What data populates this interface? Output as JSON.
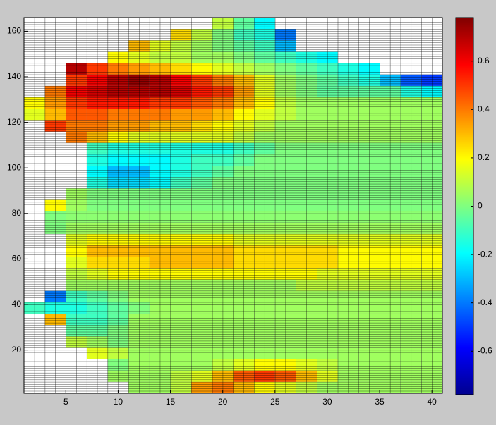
{
  "chart_data": {
    "type": "heatmap",
    "xlim": [
      1,
      41
    ],
    "ylim": [
      1,
      166
    ],
    "xticks": [
      5,
      10,
      15,
      20,
      25,
      30,
      35,
      40
    ],
    "yticks": [
      20,
      40,
      60,
      80,
      100,
      120,
      140,
      160
    ],
    "xbins": [
      1,
      3,
      5,
      7,
      9,
      11,
      13,
      15,
      17,
      19,
      21,
      23,
      25,
      27,
      29,
      31,
      33,
      35,
      37,
      39,
      41
    ],
    "ybins": [
      1,
      6,
      11,
      16,
      21,
      26,
      31,
      36,
      41,
      46,
      51,
      56,
      61,
      66,
      71,
      76,
      81,
      86,
      91,
      96,
      101,
      106,
      111,
      116,
      121,
      126,
      131,
      136,
      141,
      146,
      151,
      156,
      161,
      166
    ],
    "clim": [
      -0.78,
      0.78
    ],
    "cticks": [
      -0.6,
      -0.4,
      -0.2,
      0,
      0.2,
      0.4,
      0.6
    ],
    "colormap": "jet",
    "values": [
      [
        null,
        null,
        null,
        null,
        null,
        0.05,
        0.05,
        0.1,
        0.35,
        0.4,
        0.3,
        0.2,
        0.15,
        0.1,
        0.05,
        0.05,
        0.05,
        0.05,
        0.05,
        0.05
      ],
      [
        null,
        null,
        null,
        null,
        0.05,
        0.05,
        0.05,
        0.1,
        0.15,
        0.3,
        0.45,
        0.5,
        0.45,
        0.3,
        0.15,
        0.05,
        0.05,
        0.05,
        0.05,
        0.05
      ],
      [
        null,
        null,
        null,
        null,
        0,
        0.05,
        0.05,
        0.05,
        0.05,
        0.1,
        0.15,
        0.2,
        0.2,
        0.15,
        0.1,
        0.05,
        0.05,
        0.05,
        0.05,
        0.05
      ],
      [
        null,
        null,
        null,
        0.15,
        0.1,
        0.05,
        0.05,
        0.05,
        0.05,
        0.05,
        0.05,
        0.05,
        0.05,
        0.05,
        0.05,
        0.05,
        0.05,
        0.05,
        0.05,
        0.05
      ],
      [
        null,
        null,
        0.1,
        0.05,
        0,
        0.05,
        0.05,
        0.05,
        0.05,
        0.05,
        0.05,
        0.05,
        0.05,
        0.05,
        0.05,
        0.05,
        0.05,
        0.05,
        0.05,
        0.05
      ],
      [
        null,
        null,
        -0.05,
        -0.05,
        0,
        0.05,
        0.05,
        0.05,
        0.05,
        0.05,
        0.05,
        0.05,
        0.05,
        0.05,
        0.05,
        0.05,
        0.05,
        0.05,
        0.05,
        0.05
      ],
      [
        null,
        0.3,
        -0.1,
        -0.1,
        -0.05,
        0.05,
        0.05,
        0.05,
        0.05,
        0.05,
        0.05,
        0.05,
        0.05,
        0.05,
        0.05,
        0.05,
        0.05,
        0.05,
        0.05,
        0.05
      ],
      [
        -0.1,
        -0.15,
        -0.15,
        -0.1,
        -0.05,
        0,
        0.05,
        0.05,
        0.05,
        0.05,
        0.05,
        0.05,
        0.05,
        0.05,
        0.05,
        0.05,
        0.05,
        0.05,
        0.05,
        0.05
      ],
      [
        null,
        -0.4,
        -0.1,
        -0.05,
        0,
        0.05,
        0.05,
        0.05,
        0.05,
        0.05,
        0.05,
        0.05,
        0.05,
        0.05,
        0.05,
        0.05,
        0.05,
        0.05,
        0.05,
        0.05
      ],
      [
        null,
        null,
        0.05,
        0.05,
        0.05,
        0.05,
        0.05,
        0.05,
        0.05,
        0.05,
        0.05,
        0.05,
        0.05,
        0.1,
        0.1,
        0.1,
        0.1,
        0.1,
        0.1,
        0.1
      ],
      [
        null,
        null,
        0.1,
        0.15,
        0.2,
        0.2,
        0.2,
        0.2,
        0.2,
        0.2,
        0.2,
        0.2,
        0.2,
        0.2,
        0.15,
        0.15,
        0.15,
        0.15,
        0.15,
        0.15
      ],
      [
        null,
        null,
        0.15,
        0.25,
        0.25,
        0.25,
        0.3,
        0.3,
        0.3,
        0.3,
        0.25,
        0.25,
        0.25,
        0.25,
        0.25,
        0.2,
        0.2,
        0.2,
        0.2,
        0.2
      ],
      [
        null,
        null,
        0.2,
        0.3,
        0.3,
        0.3,
        0.3,
        0.3,
        0.3,
        0.3,
        0.25,
        0.25,
        0.25,
        0.25,
        0.25,
        0.2,
        0.2,
        0.2,
        0.2,
        0.2
      ],
      [
        null,
        null,
        0.15,
        0.2,
        0.2,
        0.2,
        0.2,
        0.2,
        0.2,
        0.2,
        0.15,
        0.15,
        0.15,
        0.15,
        0.15,
        0.15,
        0.15,
        0.15,
        0.15,
        0.15
      ],
      [
        null,
        0,
        0.05,
        0.05,
        0.05,
        0.05,
        0.05,
        0.05,
        0.05,
        0.05,
        0.05,
        0.05,
        0.05,
        0.05,
        0.05,
        0.05,
        0.05,
        0.05,
        0.05,
        0.05
      ],
      [
        null,
        0,
        0.02,
        0.02,
        0.02,
        0.02,
        0.02,
        0.02,
        0.02,
        0.02,
        0.02,
        0.02,
        0.02,
        0.02,
        0.02,
        0.02,
        0.02,
        0.02,
        0.02,
        0.02
      ],
      [
        null,
        0.2,
        0.05,
        0,
        0,
        0,
        0,
        0,
        0,
        0,
        0,
        0,
        0,
        0,
        0,
        0,
        0,
        0,
        0,
        0
      ],
      [
        null,
        null,
        0.05,
        0,
        0,
        0,
        0,
        0,
        0,
        0,
        0,
        0,
        0,
        0,
        0,
        0,
        0,
        0,
        0,
        0
      ],
      [
        null,
        null,
        null,
        -0.15,
        -0.25,
        -0.25,
        -0.2,
        -0.1,
        -0.05,
        0,
        0,
        0,
        0,
        0,
        0,
        0,
        0,
        0,
        0,
        0
      ],
      [
        null,
        null,
        null,
        -0.2,
        -0.3,
        -0.3,
        -0.2,
        -0.15,
        -0.1,
        -0.05,
        0,
        0,
        0,
        0,
        0,
        0,
        0,
        0,
        0,
        0
      ],
      [
        null,
        null,
        null,
        -0.15,
        -0.2,
        -0.2,
        -0.2,
        -0.15,
        -0.1,
        -0.1,
        -0.05,
        0,
        0,
        0,
        0,
        0,
        0,
        0,
        0,
        0
      ],
      [
        null,
        null,
        null,
        -0.1,
        -0.15,
        -0.15,
        -0.15,
        -0.15,
        -0.15,
        -0.15,
        -0.1,
        -0.05,
        0,
        0,
        0,
        0,
        0,
        0,
        0,
        0
      ],
      [
        null,
        null,
        0.4,
        0.3,
        0.2,
        0.15,
        0.15,
        0.15,
        0.15,
        0.15,
        0.1,
        0.05,
        0.05,
        0.05,
        0.05,
        0.05,
        0.05,
        0.05,
        0.05,
        0.05
      ],
      [
        null,
        0.5,
        0.4,
        0.4,
        0.35,
        0.35,
        0.3,
        0.3,
        0.25,
        0.2,
        0.15,
        0.1,
        0.05,
        0.05,
        0.05,
        0.05,
        0.05,
        0.05,
        0.05,
        0.05
      ],
      [
        0.15,
        0.3,
        0.45,
        0.45,
        0.4,
        0.4,
        0.4,
        0.35,
        0.35,
        0.3,
        0.2,
        0.15,
        0.1,
        0.05,
        0.05,
        0.05,
        0.05,
        0.05,
        0.05,
        0.05
      ],
      [
        0.2,
        0.35,
        0.5,
        0.55,
        0.55,
        0.55,
        0.5,
        0.5,
        0.45,
        0.4,
        0.3,
        0.2,
        0.1,
        0.05,
        0.05,
        0.05,
        0.05,
        0.05,
        0.05,
        0.05
      ],
      [
        null,
        0.4,
        0.6,
        0.65,
        0.7,
        0.7,
        0.7,
        0.65,
        0.55,
        0.5,
        0.35,
        0.15,
        0.05,
        0,
        -0.05,
        -0.05,
        -0.05,
        -0.05,
        -0.15,
        -0.2
      ],
      [
        null,
        null,
        0.5,
        0.6,
        0.7,
        0.75,
        0.7,
        0.6,
        0.5,
        0.4,
        0.3,
        0.15,
        0.05,
        0,
        -0.05,
        -0.1,
        -0.15,
        -0.3,
        -0.45,
        -0.5
      ],
      [
        null,
        null,
        0.7,
        0.5,
        0.4,
        0.35,
        0.3,
        0.25,
        0.2,
        0.15,
        0.1,
        0.05,
        0,
        -0.05,
        -0.1,
        -0.15,
        -0.2,
        null,
        null,
        null
      ],
      [
        null,
        null,
        null,
        null,
        0.2,
        0.15,
        0.1,
        0.1,
        0.05,
        0.05,
        0,
        -0.05,
        -0.1,
        -0.15,
        -0.2,
        null,
        null,
        null,
        null,
        null
      ],
      [
        null,
        null,
        null,
        null,
        null,
        0.3,
        0.15,
        0.1,
        0.05,
        0,
        -0.05,
        -0.1,
        -0.3,
        null,
        null,
        null,
        null,
        null,
        null,
        null
      ],
      [
        null,
        null,
        null,
        null,
        null,
        null,
        null,
        0.25,
        0.1,
        0,
        -0.1,
        -0.15,
        -0.4,
        null,
        null,
        null,
        null,
        null,
        null,
        null
      ],
      [
        null,
        null,
        null,
        null,
        null,
        null,
        null,
        null,
        null,
        0.1,
        -0.05,
        -0.2,
        null,
        null,
        null,
        null,
        null,
        null,
        null,
        null
      ]
    ]
  }
}
